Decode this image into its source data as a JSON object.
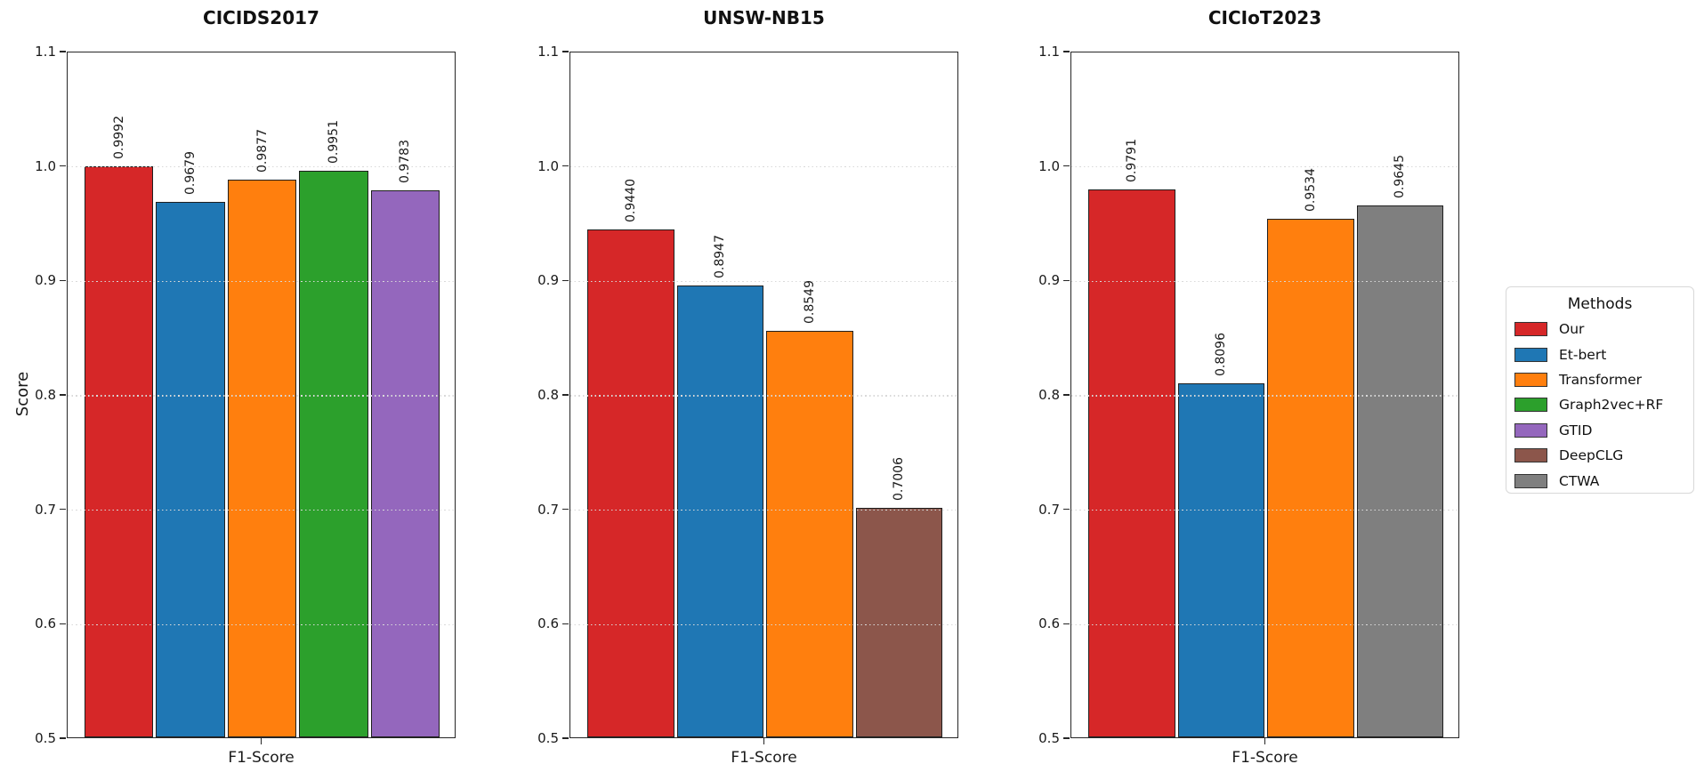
{
  "figure": {
    "background": "#ffffff",
    "text_color": "#1a1a1a"
  },
  "legend": {
    "title": "Methods",
    "items": [
      {
        "label": "Our",
        "color": "#d62728"
      },
      {
        "label": "Et-bert",
        "color": "#1f77b4"
      },
      {
        "label": "Transformer",
        "color": "#ff7f0e"
      },
      {
        "label": "Graph2vec+RF",
        "color": "#2ca02c"
      },
      {
        "label": "GTID",
        "color": "#9467bd"
      },
      {
        "label": "DeepCLG",
        "color": "#8c564b"
      },
      {
        "label": "CTWA",
        "color": "#7f7f7f"
      }
    ]
  },
  "chart_data": {
    "type": "bar",
    "categories": [
      "F1-Score"
    ],
    "ylabel": "Score",
    "ylim": [
      0.5,
      1.1
    ],
    "yticks": [
      "0.5",
      "0.6",
      "0.7",
      "0.8",
      "0.9",
      "1.0",
      "1.1"
    ],
    "grid": "horizontal-dotted-above-bars",
    "legend_title": "Methods",
    "legend_position": "right",
    "bar_value_label_rotation": 90,
    "charts": [
      {
        "title": "CICIDS2017",
        "series": [
          {
            "name": "Our",
            "value": 0.9992,
            "label": "0.9992"
          },
          {
            "name": "Et-bert",
            "value": 0.9679,
            "label": "0.9679"
          },
          {
            "name": "Transformer",
            "value": 0.9877,
            "label": "0.9877"
          },
          {
            "name": "Graph2vec+RF",
            "value": 0.9951,
            "label": "0.9951"
          },
          {
            "name": "GTID",
            "value": 0.9783,
            "label": "0.9783"
          }
        ]
      },
      {
        "title": "UNSW-NB15",
        "series": [
          {
            "name": "Our",
            "value": 0.944,
            "label": "0.9440"
          },
          {
            "name": "Et-bert",
            "value": 0.8947,
            "label": "0.8947"
          },
          {
            "name": "Transformer",
            "value": 0.8549,
            "label": "0.8549"
          },
          {
            "name": "DeepCLG",
            "value": 0.7006,
            "label": "0.7006"
          }
        ]
      },
      {
        "title": "CICIoT2023",
        "series": [
          {
            "name": "Our",
            "value": 0.9791,
            "label": "0.9791"
          },
          {
            "name": "Et-bert",
            "value": 0.8096,
            "label": "0.8096"
          },
          {
            "name": "Transformer",
            "value": 0.9534,
            "label": "0.9534"
          },
          {
            "name": "CTWA",
            "value": 0.9645,
            "label": "0.9645"
          }
        ]
      }
    ]
  }
}
